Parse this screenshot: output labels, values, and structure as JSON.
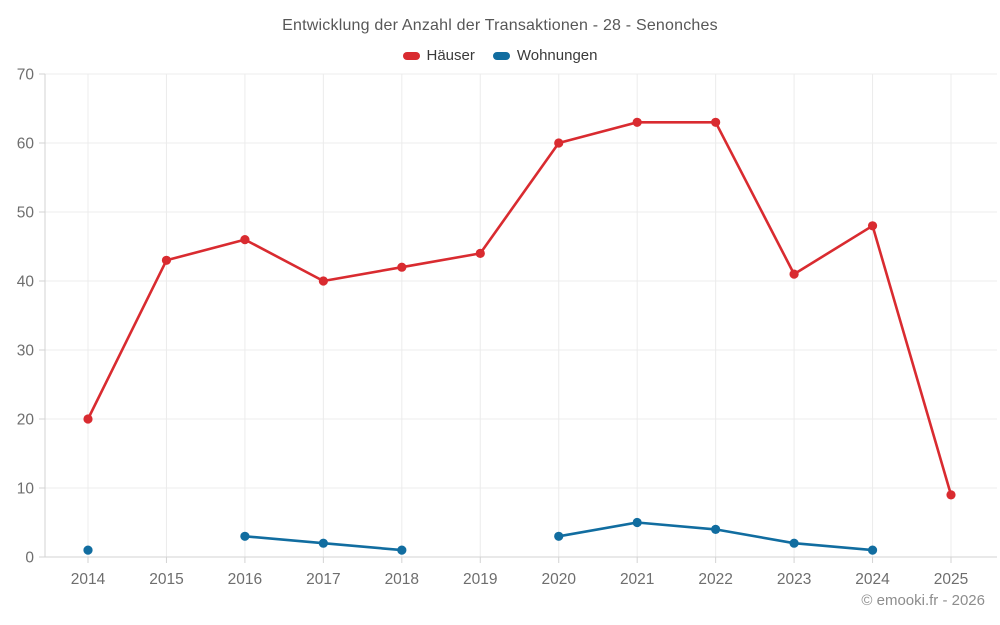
{
  "chart_data": {
    "type": "line",
    "title": "Entwicklung der Anzahl der Transaktionen - 28 - Senonches",
    "footer": "© emooki.fr - 2026",
    "categories": [
      "2014",
      "2015",
      "2016",
      "2017",
      "2018",
      "2019",
      "2020",
      "2021",
      "2022",
      "2023",
      "2024",
      "2025"
    ],
    "series": [
      {
        "name": "Häuser",
        "color": "#d92b30",
        "values": [
          20,
          43,
          46,
          40,
          42,
          44,
          60,
          63,
          63,
          41,
          48,
          9
        ]
      },
      {
        "name": "Wohnungen",
        "color": "#116da0",
        "values": [
          1,
          null,
          3,
          2,
          1,
          null,
          3,
          5,
          4,
          2,
          1,
          null
        ]
      }
    ],
    "ylim": [
      0,
      70
    ],
    "ytick_step": 10,
    "yticks": [
      0,
      10,
      20,
      30,
      40,
      50,
      60,
      70
    ],
    "grid": "on",
    "legend_position": "top",
    "xlabel": "",
    "ylabel": "",
    "style": {
      "grid_color": "#ececec",
      "axis_color": "#d3d3d3",
      "tick_label_color": "#6e6e6e",
      "marker_radius": 4.6,
      "line_width": 2.6
    }
  }
}
